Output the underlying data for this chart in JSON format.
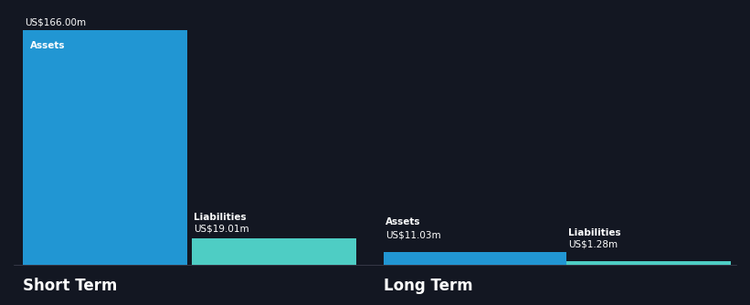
{
  "background_color": "#131722",
  "bar_color_assets": "#2196d3",
  "bar_color_liabilities": "#4ecdc4",
  "text_color": "#ffffff",
  "short_term": {
    "assets_value": 166.0,
    "liabilities_value": 19.01,
    "assets_label": "Assets",
    "liabilities_label": "Liabilities",
    "assets_value_str": "US$166.00m",
    "liabilities_value_str": "US$19.01m",
    "section_label": "Short Term"
  },
  "long_term": {
    "assets_value": 11.03,
    "liabilities_value": 1.28,
    "assets_label": "Assets",
    "liabilities_label": "Liabilities",
    "assets_value_str": "US$11.03m",
    "liabilities_value_str": "US$1.28m",
    "section_label": "Long Term"
  },
  "max_value": 166.0,
  "label_fontsize": 7.5,
  "section_fontsize": 12,
  "value_fontsize": 7.5
}
